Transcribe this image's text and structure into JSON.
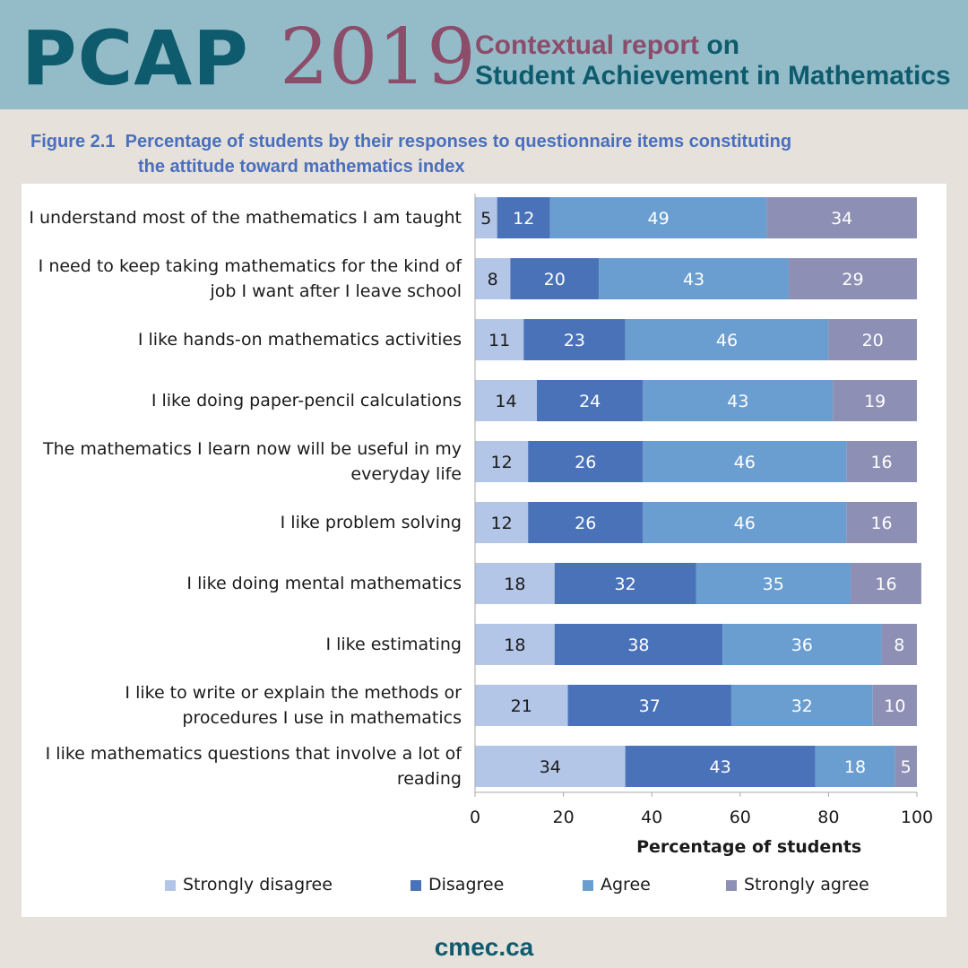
{
  "header": {
    "brand": "PCAP",
    "year": "2019",
    "subtitle_part1": "Contextual report",
    "subtitle_part2": " on",
    "subtitle_line2": "Student Achievement in Mathematics",
    "brand_color": "#0e5b6e",
    "accent_color": "#8c4d6a",
    "background_color": "#93bcc8"
  },
  "figure": {
    "label": "Figure 2.1",
    "title_line1": "Percentage of students by their responses to questionnaire items constituting",
    "title_line2": "the attitude toward mathematics index"
  },
  "chart_data": {
    "type": "bar",
    "orientation": "horizontal",
    "stacked": true,
    "categories": [
      [
        "I understand most of the mathematics I am taught"
      ],
      [
        "I need to keep taking mathematics for the kind of",
        "job I want after I leave school"
      ],
      [
        "I like hands-on mathematics activities"
      ],
      [
        "I like doing paper-pencil calculations"
      ],
      [
        "The mathematics I learn now will be useful in my",
        "everyday life"
      ],
      [
        "I like problem solving"
      ],
      [
        "I like doing mental mathematics"
      ],
      [
        "I like estimating"
      ],
      [
        "I like to write or explain the methods or",
        "procedures I use in mathematics"
      ],
      [
        "I like mathematics questions that involve a lot of",
        "reading"
      ]
    ],
    "series": [
      {
        "name": "Strongly disagree",
        "color": "#b4c6e7",
        "values": [
          5,
          8,
          11,
          14,
          12,
          12,
          18,
          18,
          21,
          34
        ]
      },
      {
        "name": "Disagree",
        "color": "#4a72b9",
        "values": [
          12,
          20,
          23,
          24,
          26,
          26,
          32,
          38,
          37,
          43
        ]
      },
      {
        "name": "Agree",
        "color": "#6a9ed0",
        "values": [
          49,
          43,
          46,
          43,
          46,
          46,
          35,
          36,
          32,
          18
        ]
      },
      {
        "name": "Strongly agree",
        "color": "#8d90b4",
        "values": [
          34,
          29,
          20,
          19,
          16,
          16,
          16,
          8,
          10,
          5
        ]
      }
    ],
    "xlabel": "Percentage of students",
    "xlim": [
      0,
      100
    ],
    "xticks": [
      0,
      20,
      40,
      60,
      80,
      100
    ],
    "grid": false,
    "legend": "bottom"
  },
  "footer": {
    "site": "cmec.ca"
  }
}
